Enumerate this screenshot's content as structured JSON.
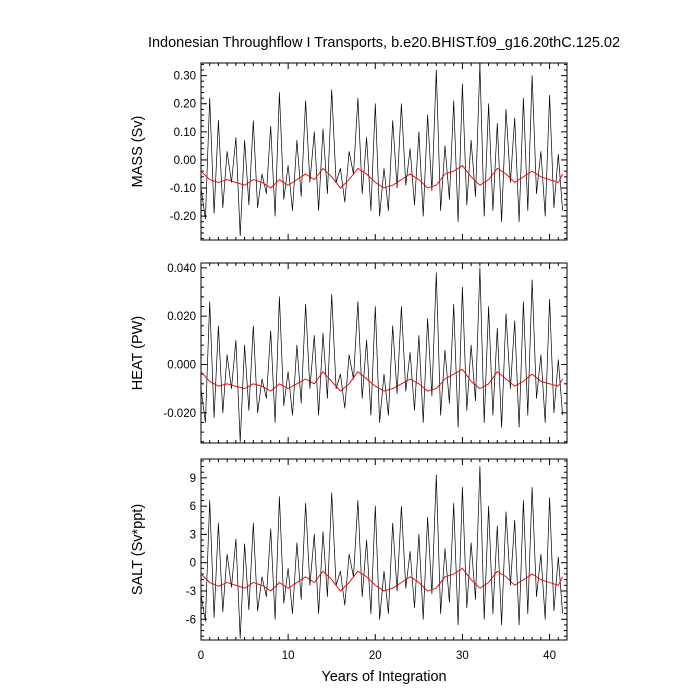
{
  "title": "Indonesian Throughflow I Transports, b.e20.BHIST.f09_g16.20thC.125.02",
  "xlabel": "Years of Integration",
  "x_ticks": [
    "0",
    "10",
    "20",
    "30",
    "40"
  ],
  "colors": {
    "raw": "#000000",
    "smoothed": "#e00000"
  },
  "chart_data": [
    {
      "type": "line",
      "ylabel": "MASS (Sv)",
      "xlim": [
        0,
        42
      ],
      "ylim": [
        -0.285,
        0.345
      ],
      "y_ticks": [
        "0.30",
        "0.20",
        "0.10",
        "0.00",
        "-0.10",
        "-0.20"
      ],
      "y_tick_values": [
        0.3,
        0.2,
        0.1,
        0.0,
        -0.1,
        -0.2
      ],
      "series": [
        {
          "style": "raw",
          "x": [
            0,
            0.5,
            1,
            1.5,
            2,
            2.5,
            3,
            3.5,
            4,
            4.5,
            5,
            5.5,
            6,
            6.5,
            7,
            7.5,
            8,
            8.5,
            9,
            9.5,
            10,
            10.5,
            11,
            11.5,
            12,
            12.5,
            13,
            13.5,
            14,
            14.5,
            15,
            15.5,
            16,
            16.5,
            17,
            17.5,
            18,
            18.5,
            19,
            19.5,
            20,
            20.5,
            21,
            21.5,
            22,
            22.5,
            23,
            23.5,
            24,
            24.5,
            25,
            25.5,
            26,
            26.5,
            27,
            27.5,
            28,
            28.5,
            29,
            29.5,
            30,
            30.5,
            31,
            31.5,
            32,
            32.5,
            33,
            33.5,
            34,
            34.5,
            35,
            35.5,
            36,
            36.5,
            37,
            37.5,
            38,
            38.5,
            39,
            39.5,
            40,
            40.5,
            41,
            41.5
          ],
          "y": [
            -0.1,
            -0.21,
            0.22,
            -0.19,
            0.14,
            -0.17,
            0.03,
            -0.08,
            0.08,
            -0.27,
            0.07,
            -0.16,
            0.14,
            -0.17,
            -0.05,
            -0.12,
            0.12,
            -0.2,
            0.24,
            -0.14,
            -0.02,
            -0.18,
            0.07,
            -0.13,
            0.21,
            -0.08,
            0.1,
            -0.18,
            0.11,
            -0.12,
            0.25,
            -0.08,
            -0.03,
            -0.15,
            0.03,
            -0.05,
            0.22,
            -0.12,
            0.08,
            -0.18,
            0.2,
            -0.2,
            -0.03,
            -0.18,
            0.14,
            -0.1,
            0.2,
            -0.09,
            0.04,
            -0.16,
            0.1,
            -0.2,
            0.16,
            -0.11,
            0.32,
            -0.18,
            0.05,
            -0.14,
            0.21,
            -0.22,
            0.27,
            -0.16,
            0.07,
            -0.13,
            0.34,
            -0.2,
            0.2,
            -0.18,
            0.13,
            -0.22,
            0.18,
            -0.08,
            0.15,
            -0.22,
            0.22,
            -0.18,
            0.3,
            -0.12,
            0.03,
            -0.2,
            0.23,
            -0.17,
            0.02,
            -0.18
          ]
        },
        {
          "style": "smoothed",
          "x": [
            0,
            1,
            2,
            3,
            4,
            5,
            6,
            7,
            8,
            9,
            10,
            11,
            12,
            13,
            14,
            15,
            16,
            17,
            18,
            19,
            20,
            21,
            22,
            23,
            24,
            25,
            26,
            27,
            28,
            29,
            30,
            31,
            32,
            33,
            34,
            35,
            36,
            37,
            38,
            39,
            40,
            41,
            41.5
          ],
          "y": [
            -0.04,
            -0.07,
            -0.08,
            -0.07,
            -0.08,
            -0.09,
            -0.07,
            -0.08,
            -0.1,
            -0.07,
            -0.09,
            -0.07,
            -0.05,
            -0.07,
            -0.03,
            -0.06,
            -0.1,
            -0.07,
            -0.03,
            -0.05,
            -0.08,
            -0.1,
            -0.09,
            -0.07,
            -0.05,
            -0.07,
            -0.1,
            -0.09,
            -0.05,
            -0.04,
            -0.02,
            -0.06,
            -0.09,
            -0.07,
            -0.03,
            -0.05,
            -0.08,
            -0.06,
            -0.04,
            -0.06,
            -0.07,
            -0.08,
            -0.05
          ]
        }
      ]
    },
    {
      "type": "line",
      "ylabel": "HEAT (PW)",
      "xlim": [
        0,
        42
      ],
      "ylim": [
        -0.0325,
        0.042
      ],
      "y_ticks": [
        "0.040",
        "0.020",
        "0.000",
        "-0.020"
      ],
      "y_tick_values": [
        0.04,
        0.02,
        0.0,
        -0.02
      ],
      "series": [
        {
          "style": "raw",
          "x": [
            0,
            0.5,
            1,
            1.5,
            2,
            2.5,
            3,
            3.5,
            4,
            4.5,
            5,
            5.5,
            6,
            6.5,
            7,
            7.5,
            8,
            8.5,
            9,
            9.5,
            10,
            10.5,
            11,
            11.5,
            12,
            12.5,
            13,
            13.5,
            14,
            14.5,
            15,
            15.5,
            16,
            16.5,
            17,
            17.5,
            18,
            18.5,
            19,
            19.5,
            20,
            20.5,
            21,
            21.5,
            22,
            22.5,
            23,
            23.5,
            24,
            24.5,
            25,
            25.5,
            26,
            26.5,
            27,
            27.5,
            28,
            28.5,
            29,
            29.5,
            30,
            30.5,
            31,
            31.5,
            32,
            32.5,
            33,
            33.5,
            34,
            34.5,
            35,
            35.5,
            36,
            36.5,
            37,
            37.5,
            38,
            38.5,
            39,
            39.5,
            40,
            40.5,
            41,
            41.5
          ],
          "y": [
            -0.01,
            -0.024,
            0.026,
            -0.022,
            0.016,
            -0.02,
            0.004,
            -0.01,
            0.01,
            -0.032,
            0.008,
            -0.019,
            0.016,
            -0.02,
            -0.006,
            -0.014,
            0.014,
            -0.024,
            0.028,
            -0.017,
            -0.003,
            -0.021,
            0.008,
            -0.016,
            0.025,
            -0.01,
            0.012,
            -0.021,
            0.013,
            -0.014,
            0.029,
            -0.01,
            -0.004,
            -0.018,
            0.004,
            -0.006,
            0.026,
            -0.014,
            0.01,
            -0.021,
            0.024,
            -0.024,
            -0.004,
            -0.021,
            0.016,
            -0.012,
            0.024,
            -0.011,
            0.005,
            -0.019,
            0.012,
            -0.024,
            0.019,
            -0.013,
            0.038,
            -0.021,
            0.006,
            -0.016,
            0.025,
            -0.026,
            0.032,
            -0.019,
            0.008,
            -0.015,
            0.04,
            -0.024,
            0.024,
            -0.021,
            0.015,
            -0.026,
            0.021,
            -0.01,
            0.018,
            -0.026,
            0.026,
            -0.021,
            0.035,
            -0.014,
            0.004,
            -0.024,
            0.027,
            -0.02,
            0.002,
            -0.021
          ]
        },
        {
          "style": "smoothed",
          "x": [
            0,
            1,
            2,
            3,
            4,
            5,
            6,
            7,
            8,
            9,
            10,
            11,
            12,
            13,
            14,
            15,
            16,
            17,
            18,
            19,
            20,
            21,
            22,
            23,
            24,
            25,
            26,
            27,
            28,
            29,
            30,
            31,
            32,
            33,
            34,
            35,
            36,
            37,
            38,
            39,
            40,
            41,
            41.5
          ],
          "y": [
            -0.003,
            -0.007,
            -0.009,
            -0.008,
            -0.009,
            -0.01,
            -0.008,
            -0.009,
            -0.011,
            -0.008,
            -0.01,
            -0.008,
            -0.006,
            -0.008,
            -0.003,
            -0.007,
            -0.011,
            -0.008,
            -0.003,
            -0.006,
            -0.009,
            -0.011,
            -0.01,
            -0.008,
            -0.006,
            -0.008,
            -0.011,
            -0.01,
            -0.006,
            -0.004,
            -0.002,
            -0.007,
            -0.01,
            -0.008,
            -0.003,
            -0.006,
            -0.009,
            -0.007,
            -0.004,
            -0.007,
            -0.008,
            -0.009,
            -0.006
          ]
        }
      ]
    },
    {
      "type": "line",
      "ylabel": "SALT (Sv*ppt)",
      "xlim": [
        0,
        42
      ],
      "ylim": [
        -8.2,
        11
      ],
      "y_ticks": [
        "9",
        "6",
        "3",
        "0",
        "-3",
        "-6"
      ],
      "y_tick_values": [
        9,
        6,
        3,
        0,
        -3,
        -6
      ],
      "series": [
        {
          "style": "raw",
          "x": [
            0,
            0.5,
            1,
            1.5,
            2,
            2.5,
            3,
            3.5,
            4,
            4.5,
            5,
            5.5,
            6,
            6.5,
            7,
            7.5,
            8,
            8.5,
            9,
            9.5,
            10,
            10.5,
            11,
            11.5,
            12,
            12.5,
            13,
            13.5,
            14,
            14.5,
            15,
            15.5,
            16,
            16.5,
            17,
            17.5,
            18,
            18.5,
            19,
            19.5,
            20,
            20.5,
            21,
            21.5,
            22,
            22.5,
            23,
            23.5,
            24,
            24.5,
            25,
            25.5,
            26,
            26.5,
            27,
            27.5,
            28,
            28.5,
            29,
            29.5,
            30,
            30.5,
            31,
            31.5,
            32,
            32.5,
            33,
            33.5,
            34,
            34.5,
            35,
            35.5,
            36,
            36.5,
            37,
            37.5,
            38,
            38.5,
            39,
            39.5,
            40,
            40.5,
            41,
            41.5
          ],
          "y": [
            -3.4,
            -6.2,
            6.6,
            -5.8,
            4.2,
            -5.2,
            0.9,
            -2.6,
            2.5,
            -8.0,
            2.0,
            -5.0,
            4.2,
            -5.1,
            -1.5,
            -3.6,
            3.6,
            -6.0,
            7.0,
            -4.3,
            -0.6,
            -5.4,
            2.1,
            -3.9,
            6.3,
            -2.4,
            3.0,
            -5.4,
            3.3,
            -3.6,
            7.4,
            -2.4,
            -0.9,
            -4.5,
            0.9,
            -1.5,
            6.6,
            -3.6,
            2.4,
            -5.4,
            6.0,
            -6.0,
            -0.9,
            -5.4,
            4.2,
            -3.0,
            6.0,
            -2.7,
            1.2,
            -4.8,
            3.0,
            -6.0,
            4.8,
            -3.3,
            9.3,
            -5.4,
            1.5,
            -4.2,
            6.3,
            -6.6,
            8.0,
            -4.8,
            2.1,
            -3.9,
            10.2,
            -6.0,
            6.0,
            -5.4,
            3.9,
            -6.6,
            5.4,
            -2.4,
            4.5,
            -6.6,
            6.6,
            -5.4,
            8.0,
            -3.6,
            0.9,
            -6.0,
            6.9,
            -5.1,
            0.6,
            -5.4
          ]
        },
        {
          "style": "smoothed",
          "x": [
            0,
            1,
            2,
            3,
            4,
            5,
            6,
            7,
            8,
            9,
            10,
            11,
            12,
            13,
            14,
            15,
            16,
            17,
            18,
            19,
            20,
            21,
            22,
            23,
            24,
            25,
            26,
            27,
            28,
            29,
            30,
            31,
            32,
            33,
            34,
            35,
            36,
            37,
            38,
            39,
            40,
            41,
            41.5
          ],
          "y": [
            -1.2,
            -2.1,
            -2.5,
            -2.1,
            -2.4,
            -2.7,
            -2.1,
            -2.4,
            -3.0,
            -2.1,
            -2.7,
            -2.1,
            -1.5,
            -2.1,
            -0.9,
            -1.8,
            -3.0,
            -2.1,
            -0.9,
            -1.5,
            -2.4,
            -3.0,
            -2.7,
            -2.1,
            -1.5,
            -2.1,
            -3.0,
            -2.7,
            -1.5,
            -1.2,
            -0.6,
            -1.8,
            -2.7,
            -2.1,
            -0.9,
            -1.5,
            -2.4,
            -1.8,
            -1.2,
            -1.8,
            -2.1,
            -2.4,
            -1.5
          ]
        }
      ]
    }
  ]
}
